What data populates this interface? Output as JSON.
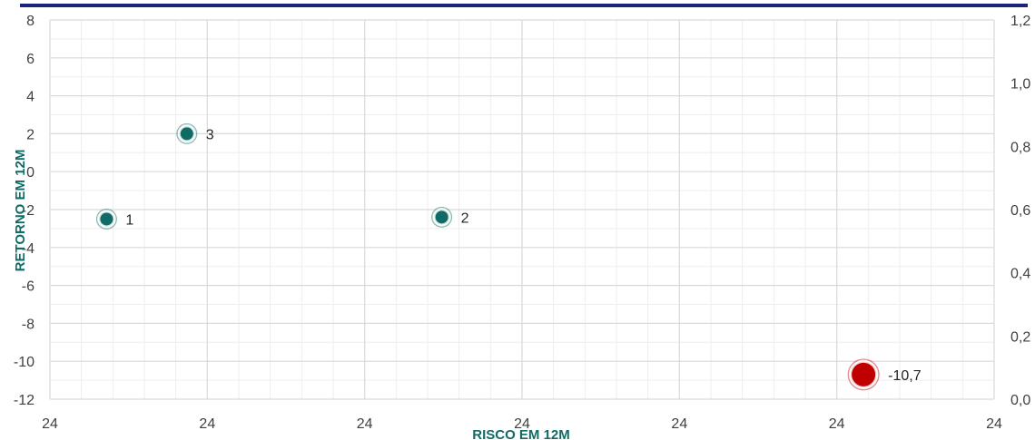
{
  "chart_data": {
    "type": "scatter",
    "title": "",
    "xlabel": "RISCO EM 12M",
    "ylabel": "RETORNO EM 12M",
    "x_tick_labels": [
      "24",
      "24",
      "24",
      "24",
      "24",
      "24",
      "24"
    ],
    "ylim": [
      -12,
      8
    ],
    "y_ticks": [
      "8",
      "6",
      "4",
      "2",
      "0",
      "-2",
      "-4",
      "-6",
      "-8",
      "-10",
      "-12"
    ],
    "y2lim": [
      0,
      1.2
    ],
    "y2_ticks": [
      "1,2",
      "1,0",
      "0,8",
      "0,6",
      "0,4",
      "0,2",
      "0,0"
    ],
    "grid": true,
    "colors": {
      "header_bar": "#1a237e",
      "point_teal": "#0f6b66",
      "point_red": "#c00000",
      "axis_title": "#0f6b66",
      "grid": "#d9d9d9"
    },
    "points": [
      {
        "x": 0.36,
        "y": -2.5,
        "label": "1",
        "color": "teal"
      },
      {
        "x": 0.87,
        "y": 2.0,
        "label": "3",
        "color": "teal"
      },
      {
        "x": 2.49,
        "y": -2.4,
        "label": "2",
        "color": "teal"
      },
      {
        "x": 5.17,
        "y": -10.7,
        "label": "-10,7",
        "color": "red"
      }
    ]
  }
}
